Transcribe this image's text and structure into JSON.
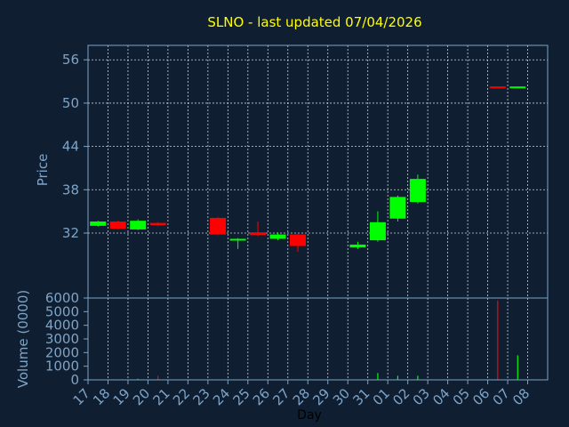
{
  "title": "SLNO - last updated 07/04/2026",
  "colors": {
    "background": "#0f1e30",
    "up": "#00ff00",
    "down": "#ff0000",
    "axis": "#7ea4c8",
    "title": "#ffff00",
    "grid": "#c8d4e0"
  },
  "chart_data": [
    {
      "type": "candlestick",
      "ylabel": "Price",
      "xlabel": "",
      "ylim": [
        23,
        58
      ],
      "yticks": [
        56,
        50,
        44,
        38,
        32
      ],
      "grid": true,
      "legend": "none",
      "days": [
        "17",
        "18",
        "19",
        "20",
        "21",
        "22",
        "23",
        "24",
        "25",
        "26",
        "27",
        "28",
        "29",
        "30",
        "31",
        "01",
        "02",
        "03",
        "04",
        "05",
        "06",
        "07",
        "08"
      ],
      "candles": [
        {
          "day": "17",
          "open": 33.0,
          "close": 33.6,
          "high": 33.7,
          "low": 32.9
        },
        {
          "day": "18",
          "open": 33.6,
          "close": 32.6,
          "high": 33.7,
          "low": 32.5
        },
        {
          "day": "19",
          "open": 32.5,
          "close": 33.7,
          "high": 33.9,
          "low": 32.4
        },
        {
          "day": "20",
          "open": 33.4,
          "close": 33.1,
          "high": 33.5,
          "low": 33.0
        },
        {
          "day": "23",
          "open": 34.1,
          "close": 31.8,
          "high": 34.2,
          "low": 31.7
        },
        {
          "day": "24",
          "open": 31.1,
          "close": 31.2,
          "high": 31.3,
          "low": 29.8
        },
        {
          "day": "25",
          "open": 32.1,
          "close": 31.7,
          "high": 33.6,
          "low": 31.6
        },
        {
          "day": "26",
          "open": 31.2,
          "close": 31.8,
          "high": 32.1,
          "low": 31.0
        },
        {
          "day": "27",
          "open": 31.8,
          "close": 30.2,
          "high": 31.9,
          "low": 29.4
        },
        {
          "day": "30",
          "open": 30.0,
          "close": 30.4,
          "high": 30.8,
          "low": 29.8
        },
        {
          "day": "31",
          "open": 31.0,
          "close": 33.5,
          "high": 35.0,
          "low": 30.8
        },
        {
          "day": "01",
          "open": 34.0,
          "close": 37.0,
          "high": 37.2,
          "low": 33.6
        },
        {
          "day": "02",
          "open": 36.3,
          "close": 39.5,
          "high": 40.1,
          "low": 36.1
        },
        {
          "day": "06",
          "open": 52.3,
          "close": 52.2,
          "high": 52.3,
          "low": 52.2
        },
        {
          "day": "07",
          "open": 52.2,
          "close": 52.3,
          "high": 52.3,
          "low": 52.2
        }
      ]
    },
    {
      "type": "bar",
      "ylabel": "Volume (0000)",
      "xlabel": "Day",
      "ylim": [
        0,
        6000
      ],
      "yticks": [
        6000,
        5000,
        4000,
        3000,
        2000,
        1000,
        0
      ],
      "categories": [
        "17",
        "18",
        "19",
        "20",
        "21",
        "22",
        "23",
        "24",
        "25",
        "26",
        "27",
        "28",
        "29",
        "30",
        "31",
        "01",
        "02",
        "03",
        "04",
        "05",
        "06",
        "07",
        "08"
      ],
      "values": [
        {
          "day": "17",
          "value": 20,
          "direction": "up"
        },
        {
          "day": "18",
          "value": 20,
          "direction": "down"
        },
        {
          "day": "19",
          "value": 80,
          "direction": "up"
        },
        {
          "day": "20",
          "value": 300,
          "direction": "down"
        },
        {
          "day": "23",
          "value": 30,
          "direction": "down"
        },
        {
          "day": "24",
          "value": 20,
          "direction": "up"
        },
        {
          "day": "25",
          "value": 30,
          "direction": "down"
        },
        {
          "day": "26",
          "value": 20,
          "direction": "up"
        },
        {
          "day": "27",
          "value": 40,
          "direction": "down"
        },
        {
          "day": "30",
          "value": 20,
          "direction": "up"
        },
        {
          "day": "31",
          "value": 500,
          "direction": "up"
        },
        {
          "day": "01",
          "value": 300,
          "direction": "up"
        },
        {
          "day": "02",
          "value": 300,
          "direction": "up"
        },
        {
          "day": "06",
          "value": 5800,
          "direction": "down"
        },
        {
          "day": "07",
          "value": 1800,
          "direction": "up"
        }
      ]
    }
  ]
}
